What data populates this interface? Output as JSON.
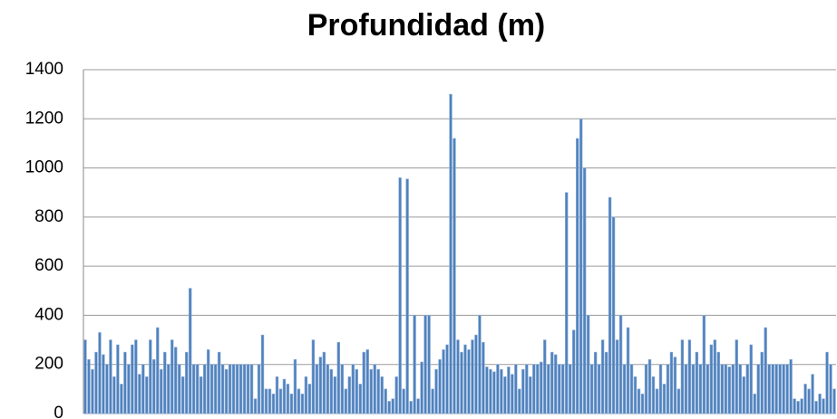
{
  "chart_data": {
    "type": "bar",
    "title": "Profundidad (m)",
    "values": [
      300,
      220,
      180,
      250,
      330,
      240,
      200,
      300,
      150,
      280,
      120,
      250,
      200,
      280,
      300,
      160,
      200,
      150,
      300,
      220,
      350,
      180,
      250,
      200,
      300,
      270,
      200,
      150,
      250,
      510,
      200,
      200,
      150,
      200,
      260,
      200,
      200,
      250,
      200,
      180,
      200,
      200,
      200,
      200,
      200,
      200,
      200,
      60,
      200,
      320,
      100,
      100,
      80,
      150,
      100,
      140,
      120,
      80,
      220,
      100,
      80,
      150,
      120,
      300,
      200,
      230,
      250,
      200,
      180,
      150,
      290,
      200,
      100,
      150,
      200,
      180,
      120,
      250,
      260,
      180,
      200,
      180,
      150,
      100,
      50,
      60,
      150,
      960,
      100,
      955,
      50,
      400,
      60,
      210,
      400,
      400,
      100,
      180,
      220,
      260,
      280,
      1300,
      1120,
      300,
      250,
      280,
      260,
      300,
      320,
      400,
      290,
      190,
      180,
      170,
      200,
      180,
      150,
      190,
      160,
      200,
      100,
      180,
      200,
      150,
      200,
      200,
      210,
      300,
      200,
      250,
      240,
      200,
      200,
      900,
      200,
      340,
      1120,
      1200,
      1000,
      400,
      200,
      250,
      200,
      300,
      250,
      880,
      800,
      300,
      400,
      200,
      350,
      200,
      150,
      100,
      80,
      200,
      220,
      150,
      100,
      200,
      120,
      200,
      250,
      230,
      100,
      300,
      200,
      300,
      200,
      250,
      200,
      400,
      200,
      280,
      300,
      250,
      200,
      200,
      190,
      200,
      300,
      200,
      150,
      200,
      280,
      80,
      200,
      250,
      350,
      200,
      200,
      200,
      200,
      200,
      200,
      220,
      60,
      50,
      60,
      120,
      100,
      160,
      50,
      80,
      60,
      250,
      200,
      100
    ],
    "color": "#4f81bd",
    "ylim": [
      0,
      1400
    ],
    "yticks": [
      0,
      200,
      400,
      600,
      800,
      1000,
      1200,
      1400
    ],
    "grid": true
  }
}
